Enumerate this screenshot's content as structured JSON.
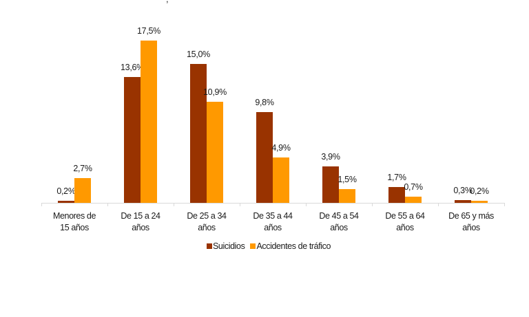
{
  "chart_data": {
    "type": "bar",
    "title": "",
    "xlabel": "",
    "ylabel": "",
    "ylim": [
      0,
      20
    ],
    "grid": false,
    "legend_position": "bottom",
    "categories": [
      "Menores de 15 años",
      "De 15 a 24 años",
      "De 25 a 34 años",
      "De 35 a 44 años",
      "De 45 a 54 años",
      "De 55 a 64 años",
      "De 65 y más años"
    ],
    "category_lines": [
      [
        "Menores de",
        "15 años"
      ],
      [
        "De 15 a 24",
        "años"
      ],
      [
        "De 25 a 34",
        "años"
      ],
      [
        "De 35 a 44",
        "años"
      ],
      [
        "De 45 a 54",
        "años"
      ],
      [
        "De 55 a 64",
        "años"
      ],
      [
        "De 65 y más",
        "años"
      ]
    ],
    "series": [
      {
        "name": "Suicidios",
        "color": "#993300",
        "values": [
          0.2,
          13.6,
          15.0,
          9.8,
          3.9,
          1.7,
          0.3
        ],
        "labels": [
          "0,2%",
          "13,6%",
          "15,0%",
          "9,8%",
          "3,9%",
          "1,7%",
          "0,3%"
        ]
      },
      {
        "name": "Accidentes de tráfico",
        "color": "#FF9900",
        "values": [
          2.7,
          17.5,
          10.9,
          4.9,
          1.5,
          0.7,
          0.2
        ],
        "labels": [
          "2,7%",
          "17,5%",
          "10,9%",
          "4,9%",
          "1,5%",
          "0,7%",
          "0,2%"
        ]
      }
    ]
  },
  "title_fragment": ","
}
